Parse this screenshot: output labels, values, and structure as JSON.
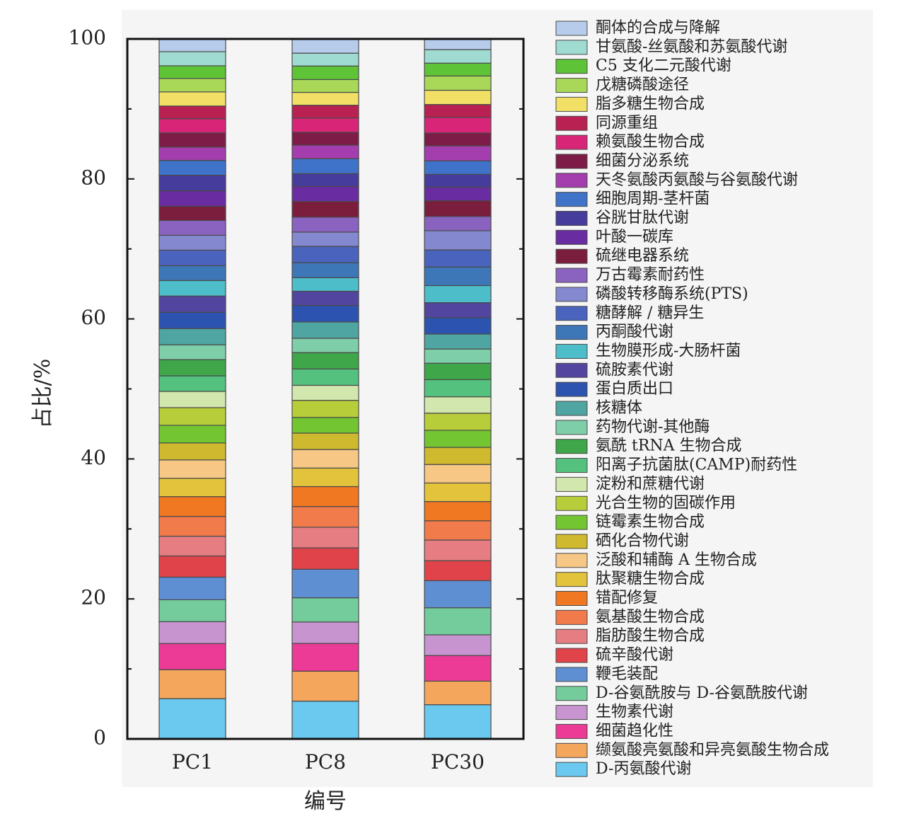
{
  "chart_data": {
    "type": "bar",
    "stacked": true,
    "title": "",
    "xlabel": "编号",
    "ylabel": "占比/%",
    "ylim": [
      0,
      100
    ],
    "yticks": [
      0,
      20,
      40,
      60,
      80,
      100
    ],
    "grid": false,
    "legend_position": "right",
    "categories": [
      "PC1",
      "PC8",
      "PC30"
    ],
    "series": [
      {
        "name": "D-丙氨酸代谢",
        "color": "#6bc8ee",
        "values": [
          5.7,
          5.3,
          4.8
        ]
      },
      {
        "name": "缬氨酸亮氨酸和异亮氨酸生物合成",
        "color": "#f4a65c",
        "values": [
          4.1,
          4.2,
          3.3
        ]
      },
      {
        "name": "细菌趋化性",
        "color": "#ec3b96",
        "values": [
          3.7,
          3.9,
          3.6
        ]
      },
      {
        "name": "生物素代谢",
        "color": "#c894d0",
        "values": [
          3.1,
          3.0,
          2.9
        ]
      },
      {
        "name": "D-谷氨酰胺与 D-谷氨酰胺代谢",
        "color": "#74cc9c",
        "values": [
          3.1,
          3.4,
          3.8
        ]
      },
      {
        "name": "鞭毛装配",
        "color": "#5e8fd3",
        "values": [
          3.2,
          4.0,
          3.8
        ]
      },
      {
        "name": "硫辛酸代谢",
        "color": "#e0434a",
        "values": [
          3.0,
          3.0,
          2.8
        ]
      },
      {
        "name": "脂肪酸生物合成",
        "color": "#e57d83",
        "values": [
          2.8,
          2.9,
          2.9
        ]
      },
      {
        "name": "氨基酸生物合成",
        "color": "#f27b4b",
        "values": [
          2.8,
          2.9,
          2.7
        ]
      },
      {
        "name": "错配修复",
        "color": "#f07822",
        "values": [
          2.8,
          2.8,
          2.7
        ]
      },
      {
        "name": "肽聚糖生物合成",
        "color": "#e3c33c",
        "values": [
          2.6,
          2.6,
          2.6
        ]
      },
      {
        "name": "泛酸和辅酶 A 生物合成",
        "color": "#f6c785",
        "values": [
          2.6,
          2.6,
          2.6
        ]
      },
      {
        "name": "硒化合物代谢",
        "color": "#cfb92f",
        "values": [
          2.4,
          2.3,
          2.4
        ]
      },
      {
        "name": "链霉素生物合成",
        "color": "#74c532",
        "values": [
          2.5,
          2.2,
          2.4
        ]
      },
      {
        "name": "光合生物的固碳作用",
        "color": "#b7cd39",
        "values": [
          2.5,
          2.4,
          2.4
        ]
      },
      {
        "name": "淀粉和蔗糖代谢",
        "color": "#d2e7ad",
        "values": [
          2.3,
          2.1,
          2.3
        ]
      },
      {
        "name": "阳离子抗菌肽(CAMP)耐药性",
        "color": "#55c17e",
        "values": [
          2.2,
          2.3,
          2.4
        ]
      },
      {
        "name": "氨酰 tRNA 生物合成",
        "color": "#3fa64a",
        "values": [
          2.3,
          2.3,
          2.3
        ]
      },
      {
        "name": "药物代谢-其他酶",
        "color": "#7fceaa",
        "values": [
          2.1,
          2.0,
          2.0
        ]
      },
      {
        "name": "核糖体",
        "color": "#4ea5a1",
        "values": [
          2.3,
          2.3,
          2.1
        ]
      },
      {
        "name": "蛋白质出口",
        "color": "#2d53b0",
        "values": [
          2.3,
          2.3,
          2.3
        ]
      },
      {
        "name": "硫胺素代谢",
        "color": "#5145a0",
        "values": [
          2.3,
          2.0,
          2.1
        ]
      },
      {
        "name": "生物膜形成-大肠杆菌",
        "color": "#4cbdc9",
        "values": [
          2.2,
          1.9,
          2.4
        ]
      },
      {
        "name": "丙酮酸代谢",
        "color": "#3e77b8",
        "values": [
          2.1,
          2.1,
          2.6
        ]
      },
      {
        "name": "糖酵解 / 糖异生",
        "color": "#4a63bd",
        "values": [
          2.2,
          2.3,
          2.4
        ]
      },
      {
        "name": "磷酸转移酶系统(PTS)",
        "color": "#8489cf",
        "values": [
          2.1,
          2.0,
          2.7
        ]
      },
      {
        "name": "万古霉素耐药性",
        "color": "#8a62bf",
        "values": [
          2.1,
          2.1,
          2.0
        ]
      },
      {
        "name": "硫继电器系统",
        "color": "#7b1d3c",
        "values": [
          2.0,
          2.2,
          2.2
        ]
      },
      {
        "name": "叶酸一碳库",
        "color": "#6a2ca1",
        "values": [
          2.2,
          2.1,
          1.9
        ]
      },
      {
        "name": "谷胱甘肽代谢",
        "color": "#453c9c",
        "values": [
          2.2,
          1.8,
          1.8
        ]
      },
      {
        "name": "细胞周期-茎杆菌",
        "color": "#3f73c9",
        "values": [
          2.1,
          2.1,
          1.9
        ]
      },
      {
        "name": "天冬氨酸丙氨酸与谷氨酸代谢",
        "color": "#a43dad",
        "values": [
          1.9,
          1.9,
          2.1
        ]
      },
      {
        "name": "细菌分泌系统",
        "color": "#7d1c46",
        "values": [
          2.0,
          1.8,
          1.8
        ]
      },
      {
        "name": "赖氨酸生物合成",
        "color": "#d82577",
        "values": [
          2.0,
          2.0,
          2.2
        ]
      },
      {
        "name": "同源重组",
        "color": "#b82152",
        "values": [
          1.8,
          1.8,
          1.8
        ]
      },
      {
        "name": "脂多糖生物合成",
        "color": "#f2e066",
        "values": [
          2.0,
          1.8,
          2.0
        ]
      },
      {
        "name": "戊糖磷酸途径",
        "color": "#a9d858",
        "values": [
          1.9,
          1.8,
          2.0
        ]
      },
      {
        "name": "C5 支化二元酸代谢",
        "color": "#5ec336",
        "values": [
          1.8,
          1.9,
          1.8
        ]
      },
      {
        "name": "甘氨酸-丝氨酸和苏氨酸代谢",
        "color": "#9fdbd0",
        "values": [
          2.0,
          1.8,
          1.9
        ]
      },
      {
        "name": "酮体的合成与降解",
        "color": "#b7cbeb",
        "values": [
          1.8,
          2.0,
          1.5
        ]
      }
    ]
  }
}
